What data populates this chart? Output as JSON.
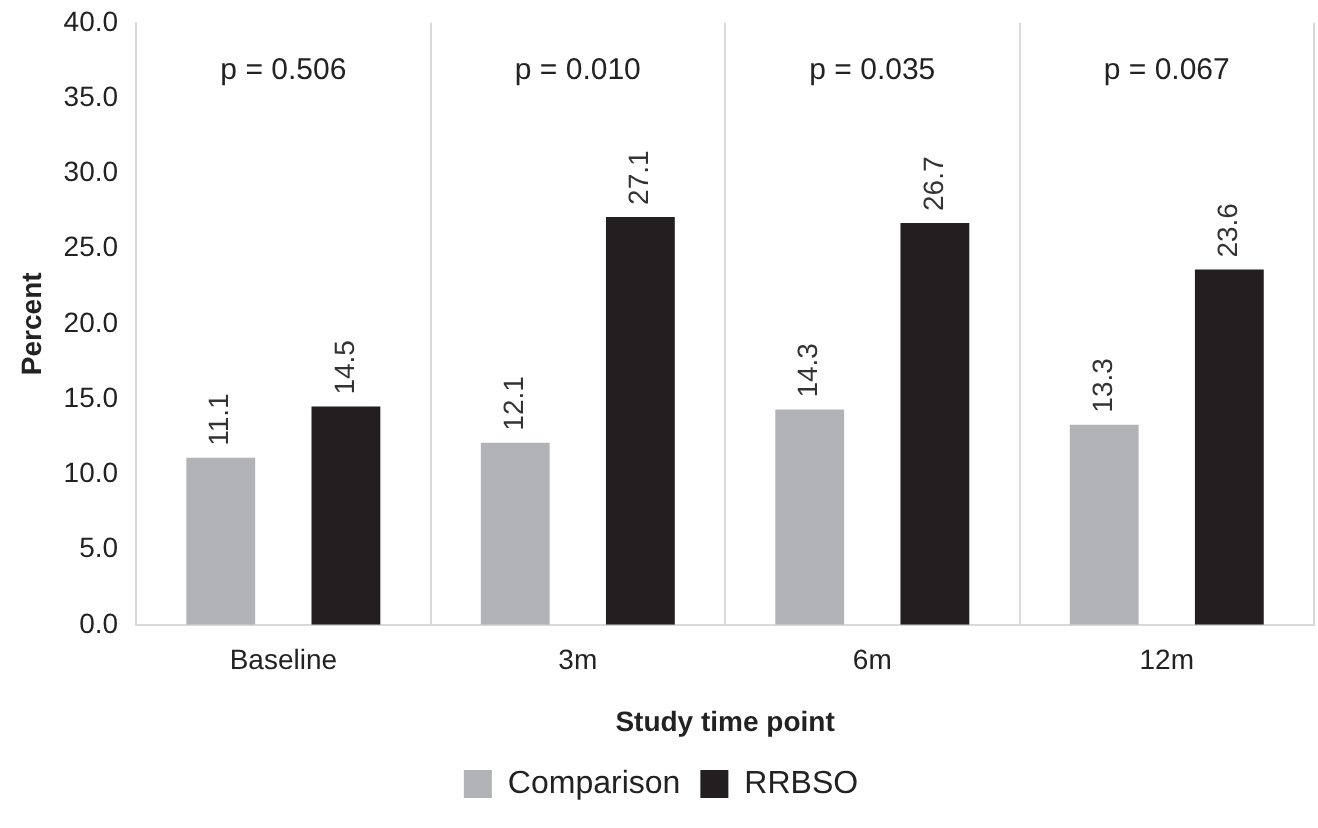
{
  "chart_data": {
    "type": "bar",
    "xlabel": "Study time point",
    "ylabel": "Percent",
    "categories": [
      "Baseline",
      "3m",
      "6m",
      "12m"
    ],
    "series": [
      {
        "name": "Comparison",
        "color": "#b2b3b6",
        "values": [
          11.1,
          12.1,
          14.3,
          13.3
        ]
      },
      {
        "name": "RRBSO",
        "color": "#231f20",
        "values": [
          14.5,
          27.1,
          26.7,
          23.6
        ]
      }
    ],
    "ylim": [
      0,
      40
    ],
    "yticks": [
      {
        "value": 0,
        "label": "0.0"
      },
      {
        "value": 5,
        "label": "5.0"
      },
      {
        "value": 10,
        "label": "10.0"
      },
      {
        "value": 15,
        "label": "15.0"
      },
      {
        "value": 20,
        "label": "20.0"
      },
      {
        "value": 25,
        "label": "25.0"
      },
      {
        "value": 30,
        "label": "30.0"
      },
      {
        "value": 35,
        "label": "35.0"
      },
      {
        "value": 40,
        "label": "40.0"
      }
    ],
    "annotations": [
      "p = 0.506",
      "p = 0.010",
      "p = 0.035",
      "p = 0.067"
    ],
    "data_labels": true,
    "grid": "x",
    "legend": "bottom"
  }
}
